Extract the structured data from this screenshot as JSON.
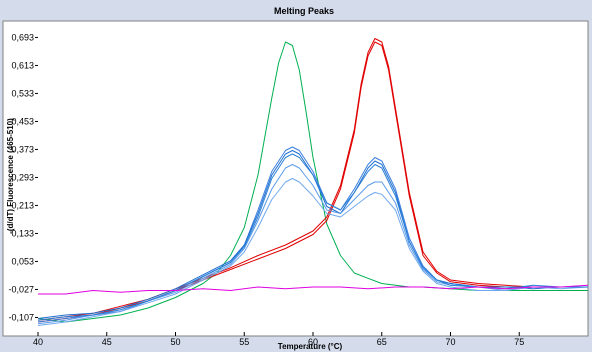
{
  "chart_data": {
    "type": "line",
    "title": "Melting Peaks",
    "xlabel": "Temperature (°C)",
    "ylabel": "-(d/dT) Fluorescence (465-510)",
    "xlim": [
      40,
      80
    ],
    "ylim": [
      -0.16,
      0.74
    ],
    "x_ticks": [
      40,
      45,
      50,
      55,
      60,
      65,
      70,
      75
    ],
    "x_tick_labels": [
      "40",
      "45",
      "50",
      "55",
      "60",
      "65",
      "70",
      "75"
    ],
    "y_ticks": [
      0.693,
      0.613,
      0.533,
      0.453,
      0.373,
      0.293,
      0.213,
      0.133,
      0.053,
      -0.027,
      -0.107
    ],
    "y_tick_labels": [
      "0,693",
      "0,613",
      "0,533",
      "0,453",
      "0,373",
      "0,293",
      "0,213",
      "0,133",
      "0,053",
      "-0,027",
      "-0,107"
    ],
    "grid": false,
    "legend": "none",
    "series": [
      {
        "color": "#00b050",
        "x": [
          40,
          42,
          44,
          46,
          48,
          50,
          52,
          53,
          54,
          55,
          56,
          57,
          57.5,
          58,
          58.5,
          59,
          59.5,
          60,
          61,
          62,
          63,
          64,
          65,
          66,
          67,
          68,
          70,
          72,
          74,
          76,
          78,
          80
        ],
        "y": [
          -0.11,
          -0.12,
          -0.11,
          -0.1,
          -0.08,
          -0.05,
          -0.01,
          0.02,
          0.07,
          0.15,
          0.3,
          0.52,
          0.62,
          0.68,
          0.67,
          0.6,
          0.48,
          0.35,
          0.16,
          0.07,
          0.02,
          0.005,
          -0.01,
          -0.015,
          -0.02,
          -0.02,
          -0.025,
          -0.03,
          -0.03,
          -0.03,
          -0.03,
          -0.03
        ]
      },
      {
        "color": "#e00000",
        "x": [
          40,
          42,
          44,
          46,
          48,
          50,
          52,
          54,
          56,
          58,
          60,
          61,
          62,
          63,
          63.5,
          64,
          64.5,
          65,
          65.5,
          66,
          67,
          68,
          69,
          70,
          72,
          74,
          76,
          78,
          80
        ],
        "y": [
          -0.12,
          -0.11,
          -0.1,
          -0.08,
          -0.06,
          -0.03,
          0,
          0.03,
          0.06,
          0.09,
          0.13,
          0.17,
          0.26,
          0.42,
          0.55,
          0.64,
          0.68,
          0.67,
          0.6,
          0.48,
          0.24,
          0.07,
          0.02,
          -0.005,
          -0.015,
          -0.02,
          -0.02,
          -0.02,
          -0.02
        ]
      },
      {
        "color": "#e00000",
        "x": [
          40,
          42,
          44,
          46,
          48,
          50,
          52,
          54,
          56,
          58,
          60,
          61,
          62,
          63,
          63.5,
          64,
          64.5,
          65,
          65.5,
          66,
          67,
          68,
          69,
          70,
          72,
          74,
          76,
          78,
          80
        ],
        "y": [
          -0.115,
          -0.105,
          -0.095,
          -0.075,
          -0.055,
          -0.025,
          0.005,
          0.035,
          0.07,
          0.1,
          0.14,
          0.18,
          0.27,
          0.43,
          0.56,
          0.65,
          0.69,
          0.68,
          0.61,
          0.49,
          0.25,
          0.08,
          0.025,
          0,
          -0.01,
          -0.015,
          -0.02,
          -0.02,
          -0.02
        ]
      },
      {
        "color": "#3a7fe0",
        "x": [
          40,
          42,
          44,
          46,
          48,
          50,
          52,
          54,
          55,
          56,
          57,
          58,
          58.5,
          59,
          60,
          61,
          62,
          63,
          64,
          64.5,
          65,
          66,
          67,
          68,
          69,
          70,
          72,
          74,
          76,
          78,
          80
        ],
        "y": [
          -0.12,
          -0.11,
          -0.1,
          -0.09,
          -0.06,
          -0.03,
          0.01,
          0.05,
          0.1,
          0.2,
          0.31,
          0.37,
          0.38,
          0.37,
          0.31,
          0.22,
          0.2,
          0.26,
          0.33,
          0.35,
          0.34,
          0.26,
          0.12,
          0.04,
          0.0,
          -0.01,
          -0.02,
          -0.02,
          -0.02,
          -0.02,
          -0.02
        ]
      },
      {
        "color": "#1f6fd0",
        "x": [
          40,
          42,
          44,
          46,
          48,
          50,
          52,
          54,
          55,
          56,
          57,
          58,
          58.5,
          59,
          60,
          61,
          62,
          63,
          64,
          64.5,
          65,
          66,
          67,
          68,
          69,
          70,
          72,
          74,
          76,
          78,
          80
        ],
        "y": [
          -0.11,
          -0.1,
          -0.095,
          -0.08,
          -0.055,
          -0.025,
          0.015,
          0.055,
          0.1,
          0.19,
          0.3,
          0.36,
          0.37,
          0.36,
          0.3,
          0.21,
          0.19,
          0.25,
          0.32,
          0.34,
          0.33,
          0.25,
          0.11,
          0.035,
          0.0,
          -0.01,
          -0.02,
          -0.02,
          -0.025,
          -0.02,
          -0.02
        ]
      },
      {
        "color": "#5a9ae8",
        "x": [
          40,
          42,
          44,
          46,
          48,
          50,
          52,
          54,
          55,
          56,
          57,
          58,
          58.5,
          59,
          60,
          61,
          62,
          63,
          64,
          64.5,
          65,
          66,
          67,
          68,
          69,
          70,
          72,
          74,
          76,
          78,
          80
        ],
        "y": [
          -0.125,
          -0.115,
          -0.1,
          -0.085,
          -0.06,
          -0.035,
          0.005,
          0.045,
          0.09,
          0.17,
          0.26,
          0.32,
          0.33,
          0.32,
          0.27,
          0.2,
          0.19,
          0.23,
          0.27,
          0.28,
          0.28,
          0.22,
          0.1,
          0.03,
          -0.005,
          -0.015,
          -0.02,
          -0.03,
          -0.02,
          -0.02,
          -0.02
        ]
      },
      {
        "color": "#6fa8ee",
        "x": [
          40,
          42,
          44,
          46,
          48,
          50,
          52,
          54,
          55,
          56,
          57,
          58,
          58.5,
          59,
          60,
          61,
          62,
          63,
          64,
          64.5,
          65,
          66,
          67,
          68,
          69,
          70,
          72,
          74,
          76,
          78,
          80
        ],
        "y": [
          -0.13,
          -0.12,
          -0.105,
          -0.09,
          -0.065,
          -0.04,
          0.0,
          0.04,
          0.08,
          0.15,
          0.23,
          0.28,
          0.29,
          0.28,
          0.24,
          0.19,
          0.18,
          0.21,
          0.24,
          0.25,
          0.245,
          0.2,
          0.09,
          0.025,
          -0.01,
          -0.02,
          -0.03,
          -0.03,
          -0.02,
          -0.025,
          -0.02
        ]
      },
      {
        "color": "#2a80d8",
        "x": [
          40,
          42,
          44,
          46,
          48,
          50,
          52,
          54,
          55,
          56,
          57,
          58,
          58.5,
          59,
          60,
          61,
          62,
          63,
          64,
          64.5,
          65,
          66,
          67,
          68,
          69,
          70,
          72,
          74,
          76,
          78,
          80
        ],
        "y": [
          -0.115,
          -0.105,
          -0.1,
          -0.085,
          -0.06,
          -0.03,
          0.01,
          0.05,
          0.095,
          0.18,
          0.29,
          0.35,
          0.36,
          0.35,
          0.3,
          0.22,
          0.2,
          0.25,
          0.31,
          0.33,
          0.32,
          0.24,
          0.11,
          0.035,
          0.0,
          -0.015,
          -0.02,
          -0.025,
          -0.015,
          -0.02,
          -0.02
        ]
      },
      {
        "color": "#e000e0",
        "x": [
          40,
          42,
          44,
          46,
          48,
          50,
          52,
          54,
          56,
          58,
          60,
          62,
          64,
          66,
          68,
          70,
          72,
          74,
          76,
          78,
          80
        ],
        "y": [
          -0.04,
          -0.04,
          -0.03,
          -0.035,
          -0.03,
          -0.03,
          -0.025,
          -0.03,
          -0.02,
          -0.025,
          -0.02,
          -0.02,
          -0.025,
          -0.02,
          -0.02,
          -0.025,
          -0.02,
          -0.025,
          -0.02,
          -0.02,
          -0.015
        ]
      }
    ]
  }
}
